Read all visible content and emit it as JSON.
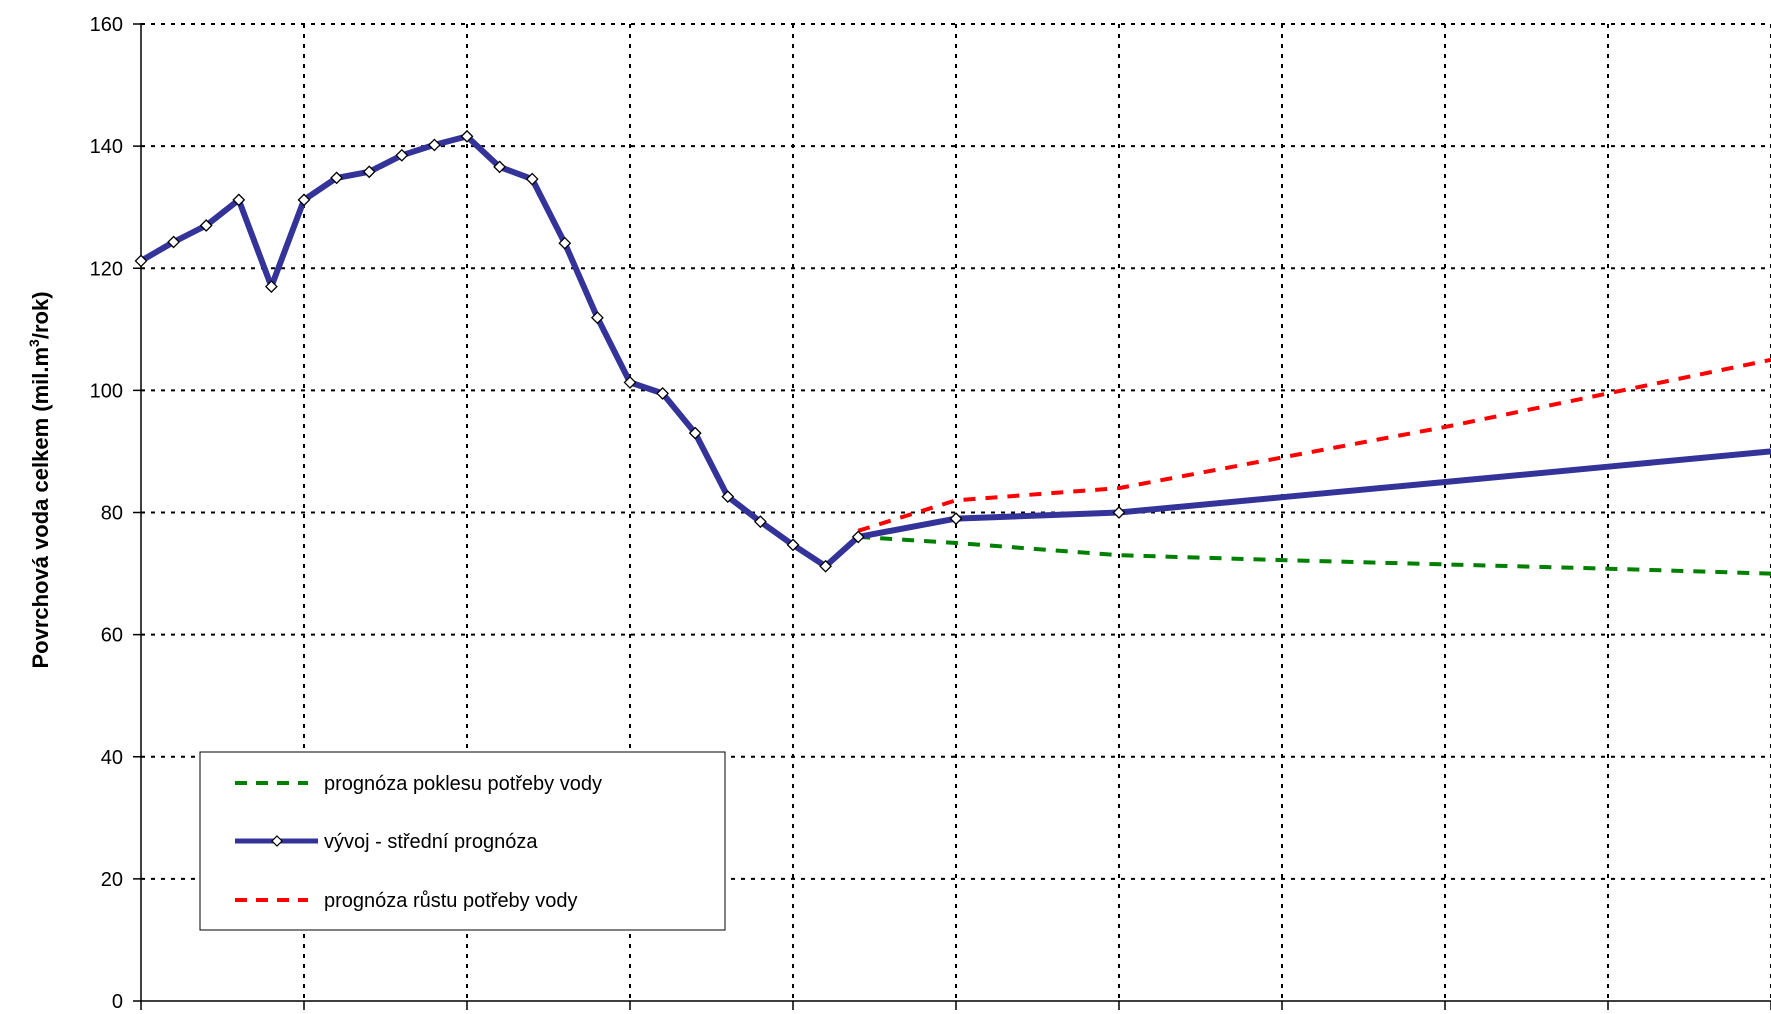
{
  "chart_data": {
    "type": "line",
    "ylabel": "Povrchová voda celkem (mil.m3/rok)",
    "ylabel_parts": {
      "before": "Povrchová voda celkem (mil.m",
      "sup": "3",
      "after": "/rok)"
    },
    "ylim": [
      0,
      160
    ],
    "yticks": [
      0,
      20,
      40,
      60,
      80,
      100,
      120,
      140,
      160
    ],
    "xlim": [
      0,
      50
    ],
    "xticks": [
      0,
      5,
      10,
      15,
      20,
      25,
      30,
      35,
      40,
      45,
      50
    ],
    "grid": true,
    "legend_position": "bottom-left",
    "series": [
      {
        "name": "prognóza poklesu potřeby vody",
        "color": "#008000",
        "style": "dashed",
        "x": [
          22,
          25,
          30,
          35,
          40,
          45,
          50
        ],
        "y": [
          76,
          75,
          73,
          72.2,
          71.5,
          70.8,
          70
        ]
      },
      {
        "name": "vývoj - střední prognóza",
        "color": "#333399",
        "style": "solid-markers",
        "x": [
          0,
          1,
          2,
          3,
          4,
          5,
          6,
          7,
          8,
          9,
          10,
          11,
          12,
          13,
          14,
          15,
          16,
          17,
          18,
          19,
          20,
          21,
          22,
          25,
          30,
          35,
          40,
          45,
          50
        ],
        "y": [
          121.2,
          124.3,
          127,
          131.2,
          117,
          131.2,
          134.8,
          135.8,
          138.5,
          140.2,
          141.6,
          136.6,
          134.6,
          124.1,
          111.9,
          101.3,
          99.5,
          93,
          82.6,
          78.5,
          74.7,
          71.2,
          76,
          79,
          80,
          82.5,
          85,
          87.5,
          90
        ],
        "marker_count": 25
      },
      {
        "name": "prognóza růstu potřeby vody",
        "color": "#ff0000",
        "style": "dashed",
        "x": [
          22,
          25,
          30,
          35,
          40,
          45,
          50
        ],
        "y": [
          77,
          82,
          84,
          89,
          94,
          99.5,
          105
        ]
      }
    ]
  }
}
